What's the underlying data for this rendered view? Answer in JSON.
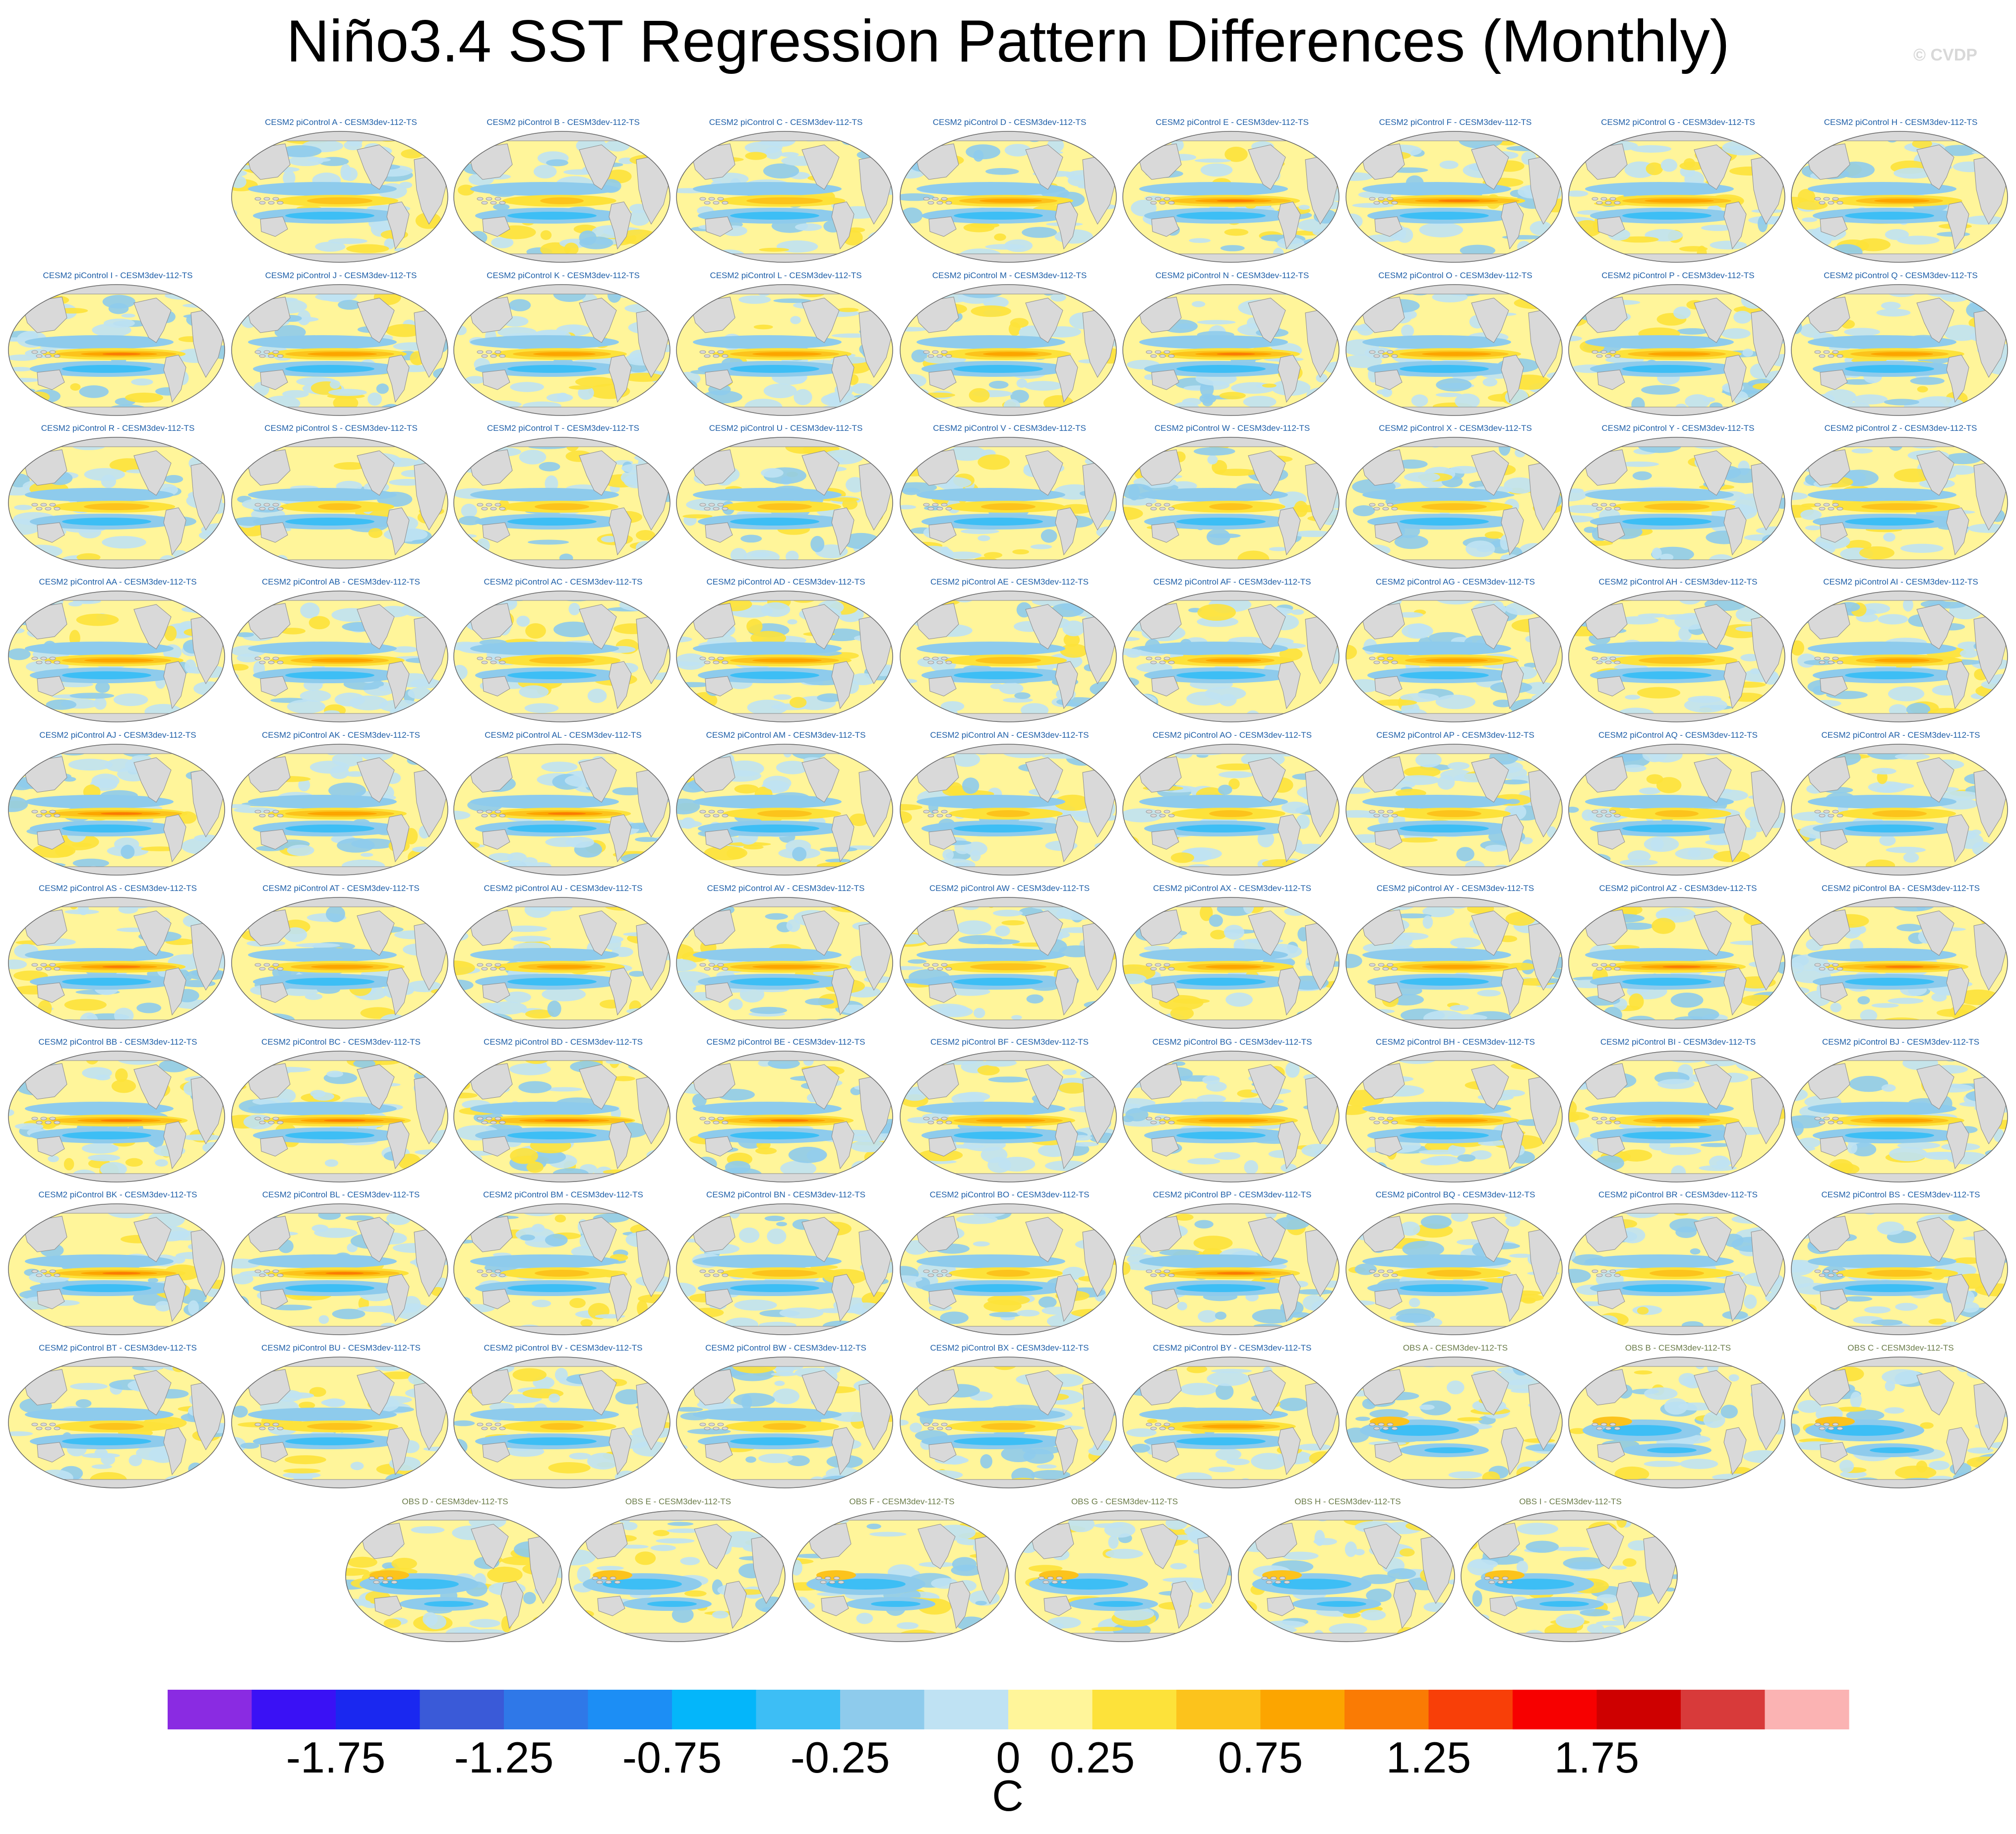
{
  "title": "Niño3.4 SST Regression Pattern Differences (Monthly)",
  "watermark": "© CVDP",
  "chart_data": {
    "type": "heatmap",
    "title": "Niño3.4 SST Regression Pattern Differences (Monthly)",
    "variable": "SST regression difference",
    "panels": [
      {
        "label": "CESM2 piControl A - CESM3dev-112-TS",
        "kind": "model",
        "amp": 0.6
      },
      {
        "label": "CESM2 piControl B - CESM3dev-112-TS",
        "kind": "model",
        "amp": 0.4
      },
      {
        "label": "CESM2 piControl C - CESM3dev-112-TS",
        "kind": "model",
        "amp": 0.7
      },
      {
        "label": "CESM2 piControl D - CESM3dev-112-TS",
        "kind": "model",
        "amp": 0.9
      },
      {
        "label": "CESM2 piControl E - CESM3dev-112-TS",
        "kind": "model",
        "amp": 1.1
      },
      {
        "label": "CESM2 piControl F - CESM3dev-112-TS",
        "kind": "model",
        "amp": 1.2
      },
      {
        "label": "CESM2 piControl G - CESM3dev-112-TS",
        "kind": "model",
        "amp": 1.0
      },
      {
        "label": "CESM2 piControl H - CESM3dev-112-TS",
        "kind": "model",
        "amp": 0.8
      },
      {
        "label": "CESM2 piControl I - CESM3dev-112-TS",
        "kind": "model",
        "amp": 1.1
      },
      {
        "label": "CESM2 piControl J - CESM3dev-112-TS",
        "kind": "model",
        "amp": 1.0
      },
      {
        "label": "CESM2 piControl K - CESM3dev-112-TS",
        "kind": "model",
        "amp": 0.9
      },
      {
        "label": "CESM2 piControl L - CESM3dev-112-TS",
        "kind": "model",
        "amp": 1.0
      },
      {
        "label": "CESM2 piControl M - CESM3dev-112-TS",
        "kind": "model",
        "amp": 0.8
      },
      {
        "label": "CESM2 piControl N - CESM3dev-112-TS",
        "kind": "model",
        "amp": 1.1
      },
      {
        "label": "CESM2 piControl O - CESM3dev-112-TS",
        "kind": "model",
        "amp": 1.0
      },
      {
        "label": "CESM2 piControl P - CESM3dev-112-TS",
        "kind": "model",
        "amp": 0.9
      },
      {
        "label": "CESM2 piControl Q - CESM3dev-112-TS",
        "kind": "model",
        "amp": 0.9
      },
      {
        "label": "CESM2 piControl R - CESM3dev-112-TS",
        "kind": "model",
        "amp": 0.6
      },
      {
        "label": "CESM2 piControl S - CESM3dev-112-TS",
        "kind": "model",
        "amp": 0.4
      },
      {
        "label": "CESM2 piControl T - CESM3dev-112-TS",
        "kind": "model",
        "amp": 0.5
      },
      {
        "label": "CESM2 piControl U - CESM3dev-112-TS",
        "kind": "model",
        "amp": 0.5
      },
      {
        "label": "CESM2 piControl V - CESM3dev-112-TS",
        "kind": "model",
        "amp": 0.5
      },
      {
        "label": "CESM2 piControl W - CESM3dev-112-TS",
        "kind": "model",
        "amp": 0.4
      },
      {
        "label": "CESM2 piControl X - CESM3dev-112-TS",
        "kind": "model",
        "amp": 0.6
      },
      {
        "label": "CESM2 piControl Y - CESM3dev-112-TS",
        "kind": "model",
        "amp": 0.6
      },
      {
        "label": "CESM2 piControl Z - CESM3dev-112-TS",
        "kind": "model",
        "amp": 0.7
      },
      {
        "label": "CESM2 piControl AA - CESM3dev-112-TS",
        "kind": "model",
        "amp": 1.0
      },
      {
        "label": "CESM2 piControl AB - CESM3dev-112-TS",
        "kind": "model",
        "amp": 0.9
      },
      {
        "label": "CESM2 piControl AC - CESM3dev-112-TS",
        "kind": "model",
        "amp": 0.6
      },
      {
        "label": "CESM2 piControl AD - CESM3dev-112-TS",
        "kind": "model",
        "amp": 1.0
      },
      {
        "label": "CESM2 piControl AE - CESM3dev-112-TS",
        "kind": "model",
        "amp": 0.6
      },
      {
        "label": "CESM2 piControl AF - CESM3dev-112-TS",
        "kind": "model",
        "amp": 0.8
      },
      {
        "label": "CESM2 piControl AG - CESM3dev-112-TS",
        "kind": "model",
        "amp": 0.9
      },
      {
        "label": "CESM2 piControl AH - CESM3dev-112-TS",
        "kind": "model",
        "amp": 0.7
      },
      {
        "label": "CESM2 piControl AI - CESM3dev-112-TS",
        "kind": "model",
        "amp": 0.8
      },
      {
        "label": "CESM2 piControl AJ - CESM3dev-112-TS",
        "kind": "model",
        "amp": 1.2
      },
      {
        "label": "CESM2 piControl AK - CESM3dev-112-TS",
        "kind": "model",
        "amp": 1.0
      },
      {
        "label": "CESM2 piControl AL - CESM3dev-112-TS",
        "kind": "model",
        "amp": 1.1
      },
      {
        "label": "CESM2 piControl AM - CESM3dev-112-TS",
        "kind": "model",
        "amp": 0.5
      },
      {
        "label": "CESM2 piControl AN - CESM3dev-112-TS",
        "kind": "model",
        "amp": 0.4
      },
      {
        "label": "CESM2 piControl AO - CESM3dev-112-TS",
        "kind": "model",
        "amp": 0.4
      },
      {
        "label": "CESM2 piControl AP - CESM3dev-112-TS",
        "kind": "model",
        "amp": 0.5
      },
      {
        "label": "CESM2 piControl AQ - CESM3dev-112-TS",
        "kind": "model",
        "amp": 0.4
      },
      {
        "label": "CESM2 piControl AR - CESM3dev-112-TS",
        "kind": "model",
        "amp": 0.5
      },
      {
        "label": "CESM2 piControl AS - CESM3dev-112-TS",
        "kind": "model",
        "amp": 1.1
      },
      {
        "label": "CESM2 piControl AT - CESM3dev-112-TS",
        "kind": "model",
        "amp": 0.9
      },
      {
        "label": "CESM2 piControl AU - CESM3dev-112-TS",
        "kind": "model",
        "amp": 0.8
      },
      {
        "label": "CESM2 piControl AV - CESM3dev-112-TS",
        "kind": "model",
        "amp": 1.0
      },
      {
        "label": "CESM2 piControl AW - CESM3dev-112-TS",
        "kind": "model",
        "amp": 0.7
      },
      {
        "label": "CESM2 piControl AX - CESM3dev-112-TS",
        "kind": "model",
        "amp": 0.8
      },
      {
        "label": "CESM2 piControl AY - CESM3dev-112-TS",
        "kind": "model",
        "amp": 1.0
      },
      {
        "label": "CESM2 piControl AZ - CESM3dev-112-TS",
        "kind": "model",
        "amp": 1.1
      },
      {
        "label": "CESM2 piControl BA - CESM3dev-112-TS",
        "kind": "model",
        "amp": 1.1
      },
      {
        "label": "CESM2 piControl BB - CESM3dev-112-TS",
        "kind": "model",
        "amp": 1.2
      },
      {
        "label": "CESM2 piControl BC - CESM3dev-112-TS",
        "kind": "model",
        "amp": 1.2
      },
      {
        "label": "CESM2 piControl BD - CESM3dev-112-TS",
        "kind": "model",
        "amp": 1.3
      },
      {
        "label": "CESM2 piControl BE - CESM3dev-112-TS",
        "kind": "model",
        "amp": 1.1
      },
      {
        "label": "CESM2 piControl BF - CESM3dev-112-TS",
        "kind": "model",
        "amp": 1.0
      },
      {
        "label": "CESM2 piControl BG - CESM3dev-112-TS",
        "kind": "model",
        "amp": 1.0
      },
      {
        "label": "CESM2 piControl BH - CESM3dev-112-TS",
        "kind": "model",
        "amp": 0.9
      },
      {
        "label": "CESM2 piControl BI - CESM3dev-112-TS",
        "kind": "model",
        "amp": 0.8
      },
      {
        "label": "CESM2 piControl BJ - CESM3dev-112-TS",
        "kind": "model",
        "amp": 0.9
      },
      {
        "label": "CESM2 piControl BK - CESM3dev-112-TS",
        "kind": "model",
        "amp": 1.1
      },
      {
        "label": "CESM2 piControl BL - CESM3dev-112-TS",
        "kind": "model",
        "amp": 1.1
      },
      {
        "label": "CESM2 piControl BM - CESM3dev-112-TS",
        "kind": "model",
        "amp": 0.5
      },
      {
        "label": "CESM2 piControl BN - CESM3dev-112-TS",
        "kind": "model",
        "amp": 0.6
      },
      {
        "label": "CESM2 piControl BO - CESM3dev-112-TS",
        "kind": "model",
        "amp": 0.4
      },
      {
        "label": "CESM2 piControl BP - CESM3dev-112-TS",
        "kind": "model",
        "amp": 1.1
      },
      {
        "label": "CESM2 piControl BQ - CESM3dev-112-TS",
        "kind": "model",
        "amp": 0.5
      },
      {
        "label": "CESM2 piControl BR - CESM3dev-112-TS",
        "kind": "model",
        "amp": 0.5
      },
      {
        "label": "CESM2 piControl BS - CESM3dev-112-TS",
        "kind": "model",
        "amp": 0.6
      },
      {
        "label": "CESM2 piControl BT - CESM3dev-112-TS",
        "kind": "model",
        "amp": 0.5
      },
      {
        "label": "CESM2 piControl BU - CESM3dev-112-TS",
        "kind": "model",
        "amp": 0.6
      },
      {
        "label": "CESM2 piControl BV - CESM3dev-112-TS",
        "kind": "model",
        "amp": 0.4
      },
      {
        "label": "CESM2 piControl BW - CESM3dev-112-TS",
        "kind": "model",
        "amp": 0.4
      },
      {
        "label": "CESM2 piControl BX - CESM3dev-112-TS",
        "kind": "model",
        "amp": 0.5
      },
      {
        "label": "CESM2 piControl BY - CESM3dev-112-TS",
        "kind": "model",
        "amp": 0.9
      },
      {
        "label": "OBS A - CESM3dev-112-TS",
        "kind": "obs",
        "amp": -0.5
      },
      {
        "label": "OBS B - CESM3dev-112-TS",
        "kind": "obs",
        "amp": -0.5
      },
      {
        "label": "OBS C - CESM3dev-112-TS",
        "kind": "obs",
        "amp": -0.5
      },
      {
        "label": "OBS D - CESM3dev-112-TS",
        "kind": "obs",
        "amp": -0.7
      },
      {
        "label": "OBS E - CESM3dev-112-TS",
        "kind": "obs",
        "amp": -0.6
      },
      {
        "label": "OBS F - CESM3dev-112-TS",
        "kind": "obs",
        "amp": -0.6
      },
      {
        "label": "OBS G - CESM3dev-112-TS",
        "kind": "obs",
        "amp": -0.6
      },
      {
        "label": "OBS H - CESM3dev-112-TS",
        "kind": "obs",
        "amp": -0.5
      },
      {
        "label": "OBS I - CESM3dev-112-TS",
        "kind": "obs",
        "amp": -0.6
      }
    ],
    "colorbar": {
      "unit": "C",
      "levels": [
        -2,
        -1.75,
        -1.5,
        -1.25,
        -1,
        -0.75,
        -0.5,
        -0.25,
        0,
        0.25,
        0.5,
        0.75,
        1,
        1.25,
        1.5,
        1.75,
        2
      ],
      "tick_labels": [
        "-1.75",
        "-1.25",
        "-0.75",
        "-0.25",
        "0",
        "0.25",
        "0.75",
        "1.25",
        "1.75"
      ],
      "colors": [
        "#8a2be2",
        "#3a11f5",
        "#1a28f0",
        "#3a5ad8",
        "#2f78e8",
        "#1c8ef5",
        "#04b6fa",
        "#3dbef5",
        "#8ecbec",
        "#bfe2f3",
        "#fff59a",
        "#fde23a",
        "#fcc31c",
        "#fca500",
        "#fa7b04",
        "#f83f08",
        "#f70000",
        "#ce0000",
        "#d83a3a",
        "#fbb3b3"
      ]
    },
    "land_color": "#d9d9d9"
  }
}
